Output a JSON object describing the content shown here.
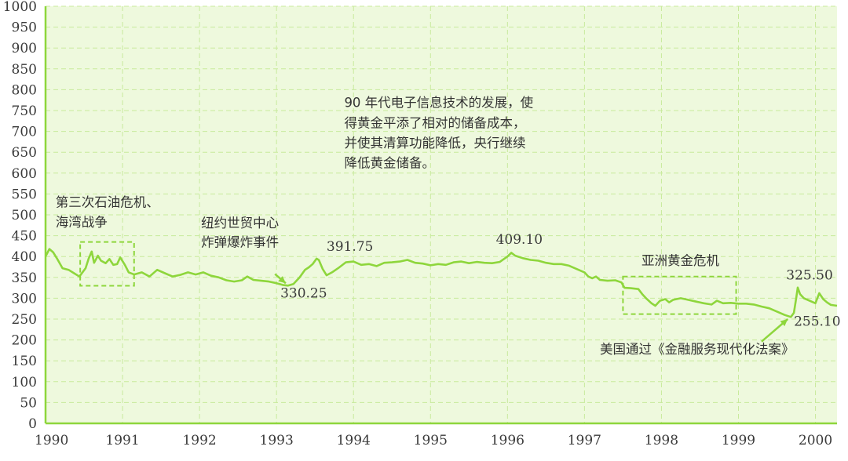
{
  "chart_data": {
    "type": "line",
    "title": "",
    "xlabel": "",
    "ylabel": "",
    "xlim": [
      1990.0,
      2000.28
    ],
    "ylim": [
      0,
      1000
    ],
    "y_ticks": [
      "0",
      "50",
      "100",
      "150",
      "200",
      "250",
      "300",
      "350",
      "400",
      "450",
      "500",
      "550",
      "600",
      "650",
      "700",
      "750",
      "800",
      "850",
      "900",
      "950",
      "1000"
    ],
    "x_ticks": [
      "1990",
      "1991",
      "1992",
      "1993",
      "1994",
      "1995",
      "1996",
      "1997",
      "1998",
      "1999",
      "2000"
    ],
    "grid": true,
    "colors": {
      "plot_bg": "#eef9dd",
      "line": "#8ed63c",
      "axis": "#8ed63c",
      "grid": "#c8ea9c",
      "annotation_box": "#8ed63c"
    },
    "series": [
      {
        "points": [
          [
            1990.0,
            400
          ],
          [
            1990.05,
            418
          ],
          [
            1990.1,
            410
          ],
          [
            1990.15,
            395
          ],
          [
            1990.22,
            372
          ],
          [
            1990.3,
            368
          ],
          [
            1990.37,
            360
          ],
          [
            1990.44,
            352
          ],
          [
            1990.52,
            372
          ],
          [
            1990.56,
            395
          ],
          [
            1990.6,
            412
          ],
          [
            1990.63,
            385
          ],
          [
            1990.68,
            402
          ],
          [
            1990.72,
            390
          ],
          [
            1990.78,
            384
          ],
          [
            1990.83,
            394
          ],
          [
            1990.88,
            380
          ],
          [
            1990.93,
            382
          ],
          [
            1990.97,
            398
          ],
          [
            1991.03,
            380
          ],
          [
            1991.08,
            362
          ],
          [
            1991.15,
            357
          ],
          [
            1991.25,
            362
          ],
          [
            1991.35,
            352
          ],
          [
            1991.45,
            368
          ],
          [
            1991.55,
            360
          ],
          [
            1991.65,
            352
          ],
          [
            1991.75,
            356
          ],
          [
            1991.85,
            362
          ],
          [
            1991.95,
            357
          ],
          [
            1992.05,
            362
          ],
          [
            1992.15,
            354
          ],
          [
            1992.25,
            350
          ],
          [
            1992.35,
            343
          ],
          [
            1992.45,
            340
          ],
          [
            1992.55,
            343
          ],
          [
            1992.62,
            352
          ],
          [
            1992.7,
            344
          ],
          [
            1992.8,
            342
          ],
          [
            1992.9,
            340
          ],
          [
            1993.0,
            336
          ],
          [
            1993.08,
            332
          ],
          [
            1993.15,
            330.25
          ],
          [
            1993.22,
            334
          ],
          [
            1993.3,
            350
          ],
          [
            1993.37,
            368
          ],
          [
            1993.42,
            374
          ],
          [
            1993.47,
            382
          ],
          [
            1993.52,
            395
          ],
          [
            1993.55,
            391.75
          ],
          [
            1993.6,
            370
          ],
          [
            1993.65,
            355
          ],
          [
            1993.72,
            362
          ],
          [
            1993.8,
            372
          ],
          [
            1993.9,
            386
          ],
          [
            1994.0,
            388
          ],
          [
            1994.1,
            380
          ],
          [
            1994.2,
            382
          ],
          [
            1994.3,
            377
          ],
          [
            1994.4,
            385
          ],
          [
            1994.5,
            386
          ],
          [
            1994.6,
            388
          ],
          [
            1994.7,
            392
          ],
          [
            1994.8,
            385
          ],
          [
            1994.9,
            383
          ],
          [
            1995.0,
            379
          ],
          [
            1995.1,
            382
          ],
          [
            1995.2,
            380
          ],
          [
            1995.3,
            386
          ],
          [
            1995.4,
            388
          ],
          [
            1995.5,
            384
          ],
          [
            1995.6,
            387
          ],
          [
            1995.7,
            385
          ],
          [
            1995.8,
            384
          ],
          [
            1995.9,
            387
          ],
          [
            1996.0,
            400
          ],
          [
            1996.05,
            409.1
          ],
          [
            1996.1,
            402
          ],
          [
            1996.2,
            396
          ],
          [
            1996.3,
            392
          ],
          [
            1996.4,
            390
          ],
          [
            1996.5,
            385
          ],
          [
            1996.6,
            382
          ],
          [
            1996.7,
            382
          ],
          [
            1996.8,
            378
          ],
          [
            1996.9,
            370
          ],
          [
            1997.0,
            362
          ],
          [
            1997.05,
            352
          ],
          [
            1997.1,
            348
          ],
          [
            1997.15,
            352
          ],
          [
            1997.2,
            344
          ],
          [
            1997.3,
            342
          ],
          [
            1997.4,
            343
          ],
          [
            1997.48,
            338
          ],
          [
            1997.52,
            325
          ],
          [
            1997.6,
            324
          ],
          [
            1997.7,
            322
          ],
          [
            1997.75,
            310
          ],
          [
            1997.8,
            300
          ],
          [
            1997.87,
            288
          ],
          [
            1997.92,
            282
          ],
          [
            1997.98,
            294
          ],
          [
            1998.05,
            298
          ],
          [
            1998.1,
            290
          ],
          [
            1998.15,
            296
          ],
          [
            1998.25,
            300
          ],
          [
            1998.35,
            296
          ],
          [
            1998.45,
            292
          ],
          [
            1998.55,
            288
          ],
          [
            1998.65,
            285
          ],
          [
            1998.72,
            294
          ],
          [
            1998.8,
            288
          ],
          [
            1998.9,
            289
          ],
          [
            1999.0,
            287
          ],
          [
            1999.1,
            287
          ],
          [
            1999.2,
            285
          ],
          [
            1999.3,
            280
          ],
          [
            1999.4,
            276
          ],
          [
            1999.5,
            268
          ],
          [
            1999.6,
            260
          ],
          [
            1999.68,
            255.1
          ],
          [
            1999.72,
            265
          ],
          [
            1999.75,
            300
          ],
          [
            1999.77,
            325.5
          ],
          [
            1999.8,
            310
          ],
          [
            1999.85,
            300
          ],
          [
            1999.9,
            296
          ],
          [
            1999.95,
            292
          ],
          [
            2000.0,
            288
          ],
          [
            2000.05,
            312
          ],
          [
            2000.1,
            298
          ],
          [
            2000.15,
            290
          ],
          [
            2000.2,
            284
          ],
          [
            2000.28,
            282
          ]
        ]
      }
    ],
    "annotations": [
      {
        "id": "oil-crisis",
        "lines": [
          "第三次石油危机、",
          "海湾战争"
        ],
        "text_x": 1990.13,
        "text_y": [
          520,
          472
        ]
      },
      {
        "id": "wtc-bombing",
        "lines": [
          "纽约世贸中心",
          "炸弹爆炸事件"
        ],
        "text_x": 1992.02,
        "text_y": [
          470,
          424
        ]
      },
      {
        "id": "tech-note",
        "lines": [
          "90 年代电子信息技术的发展，使",
          "得黄金平添了相对的储备成本，",
          "并使其清算功能降低，央行继续",
          "降低黄金储备。"
        ],
        "text_x": 1993.88,
        "text_y": [
          758,
          710,
          662,
          614
        ]
      },
      {
        "id": "asia-crisis",
        "lines": [
          "亚洲黄金危机"
        ],
        "text_x": 1997.74,
        "text_y": [
          380
        ]
      },
      {
        "id": "us-act",
        "lines": [
          "美国通过《金融服务现代化法案》"
        ],
        "text_x": 1997.2,
        "text_y": [
          167
        ]
      }
    ],
    "value_labels": [
      {
        "text": "330.25",
        "x": 1993.05,
        "y": 302
      },
      {
        "text": "391.75",
        "x": 1993.65,
        "y": 414
      },
      {
        "text": "409.10",
        "x": 1995.85,
        "y": 430
      },
      {
        "text": "325.50",
        "x": 1999.62,
        "y": 345
      },
      {
        "text": "255.10",
        "x": 1999.72,
        "y": 234
      }
    ],
    "boxes": [
      {
        "id": "oil-crisis-box",
        "x0": 1990.45,
        "x1": 1991.15,
        "y0": 330,
        "y1": 435
      },
      {
        "id": "asia-crisis-box",
        "x0": 1997.5,
        "x1": 1998.97,
        "y0": 262,
        "y1": 352
      }
    ],
    "arrows": [
      {
        "id": "wtc-arrow",
        "from": [
          1992.98,
          358
        ],
        "to": [
          1993.12,
          336
        ]
      },
      {
        "id": "act-arrow",
        "from": [
          1999.3,
          196
        ],
        "to": [
          1999.64,
          250
        ]
      }
    ]
  }
}
